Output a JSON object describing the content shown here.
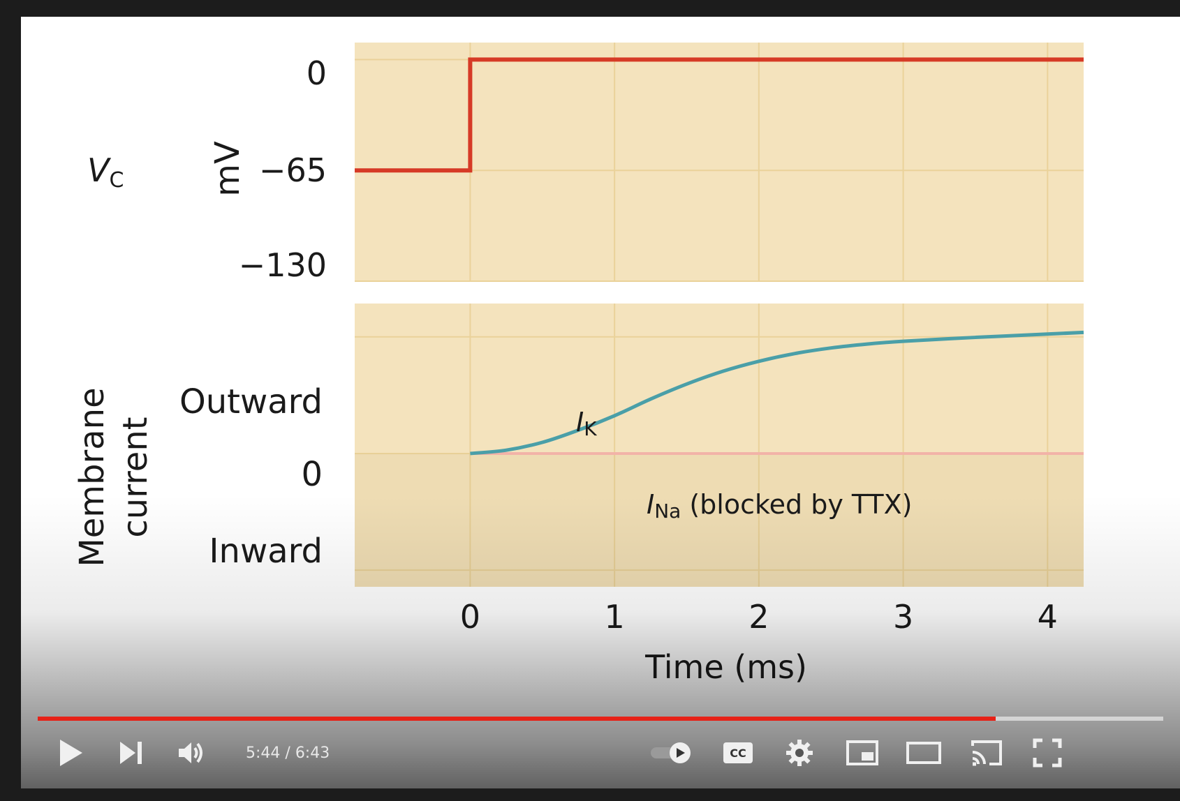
{
  "player": {
    "time_current": "5:44",
    "time_separator": " / ",
    "time_total": "6:43",
    "progress_played_fraction": 0.851,
    "accent_color": "#e62117"
  },
  "controls": [
    {
      "name": "play-button",
      "icon": "play-icon"
    },
    {
      "name": "next-button",
      "icon": "skip-next-icon"
    },
    {
      "name": "volume-button",
      "icon": "volume-icon"
    },
    {
      "name": "autoplay-toggle",
      "icon": "autoplay-toggle-icon"
    },
    {
      "name": "captions-button",
      "icon": "cc-icon"
    },
    {
      "name": "settings-button",
      "icon": "gear-icon"
    },
    {
      "name": "miniplayer-button",
      "icon": "miniplayer-icon"
    },
    {
      "name": "theater-button",
      "icon": "theater-mode-icon"
    },
    {
      "name": "cast-button",
      "icon": "cast-icon"
    },
    {
      "name": "fullscreen-button",
      "icon": "fullscreen-icon"
    }
  ],
  "slide": {
    "vc_label_main": "V",
    "vc_label_sub": "C",
    "mv_label": "mV",
    "voltage_ticks": [
      "0",
      "−65",
      "−130"
    ],
    "membrane_label_line1": "Membrane",
    "membrane_label_line2": "current",
    "current_labels": [
      "Outward",
      "0",
      "Inward"
    ],
    "time_ticks": [
      "0",
      "1",
      "2",
      "3",
      "4"
    ],
    "time_axis_label": "Time (ms)",
    "ik_label_main": "I",
    "ik_label_sub": "K",
    "ina_label_main": "I",
    "ina_label_sub": "Na",
    "ina_label_note": "(blocked by TTX)",
    "colors": {
      "panel_bg": "#f4e3bd",
      "grid": "#ead29a",
      "voltage_trace": "#d63a26",
      "ik_trace": "#4a9fa8",
      "ina_trace": "#f2b3a8"
    }
  },
  "chart_data": [
    {
      "type": "line",
      "ylabel": "mV",
      "yticks": [
        "0",
        "−65",
        "−130"
      ],
      "ylim": [
        -130,
        10
      ],
      "xlim": [
        -0.8,
        4.25
      ],
      "series": [
        {
          "name": "Vc",
          "x": [
            -0.8,
            0,
            0,
            4.25
          ],
          "y": [
            -65,
            -65,
            0,
            0
          ]
        }
      ]
    },
    {
      "type": "line",
      "xlabel": "Time (ms)",
      "xticks": [
        "0",
        "1",
        "2",
        "3",
        "4"
      ],
      "yticks": [
        "Outward",
        "0",
        "Inward"
      ],
      "xlim": [
        -0.8,
        4.25
      ],
      "ylim": [
        -2.4,
        2.7
      ],
      "series": [
        {
          "name": "IK",
          "x": [
            0,
            0.25,
            0.5,
            0.75,
            1.0,
            1.25,
            1.5,
            1.75,
            2.0,
            2.25,
            2.5,
            2.75,
            3.0,
            3.5,
            4.0,
            4.25
          ],
          "y": [
            0,
            0.06,
            0.2,
            0.42,
            0.68,
            0.98,
            1.25,
            1.48,
            1.66,
            1.8,
            1.9,
            1.97,
            2.02,
            2.09,
            2.15,
            2.18
          ]
        },
        {
          "name": "INa (blocked by TTX)",
          "x": [
            0,
            4.25
          ],
          "y": [
            0,
            0
          ]
        }
      ]
    }
  ]
}
